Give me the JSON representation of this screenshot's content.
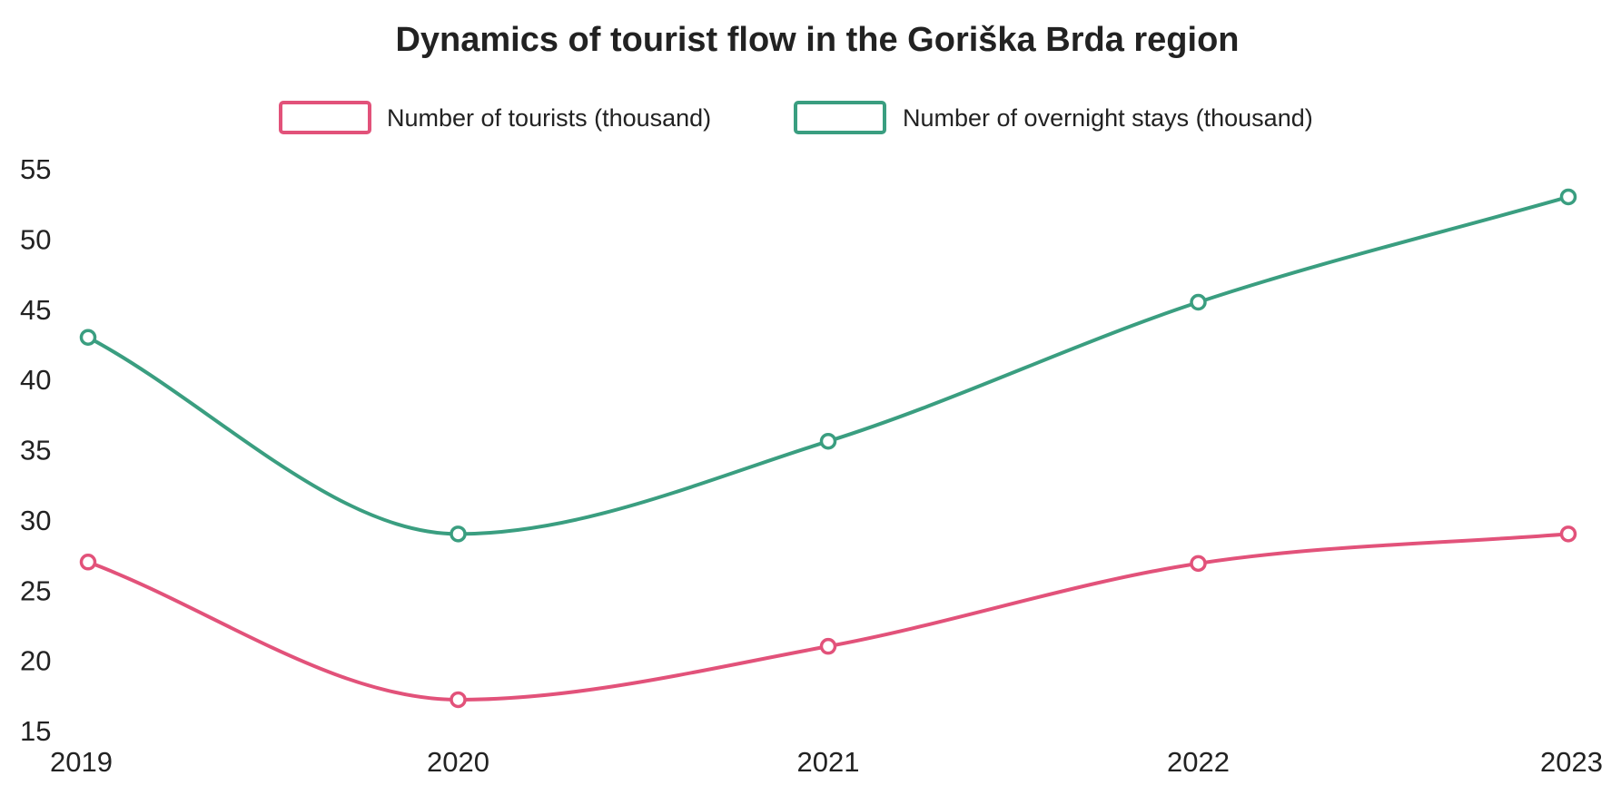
{
  "chart_data": {
    "type": "line",
    "title": "Dynamics of tourist flow in the Goriška Brda region",
    "xlabel": "",
    "ylabel": "",
    "x": [
      "2019",
      "2020",
      "2021",
      "2022",
      "2023"
    ],
    "ylim": [
      15,
      55
    ],
    "yticks": [
      "15",
      "20",
      "25",
      "30",
      "35",
      "40",
      "45",
      "50",
      "55"
    ],
    "grid": false,
    "legend_position": "top-center",
    "series": [
      {
        "name": "Number of tourists (thousand)",
        "color": "#e2527a",
        "values": [
          27,
          17.2,
          21,
          26.9,
          29
        ]
      },
      {
        "name": "Number of overnight stays (thousand)",
        "color": "#3a9e80",
        "values": [
          43,
          29,
          35.6,
          45.5,
          53
        ]
      }
    ]
  }
}
